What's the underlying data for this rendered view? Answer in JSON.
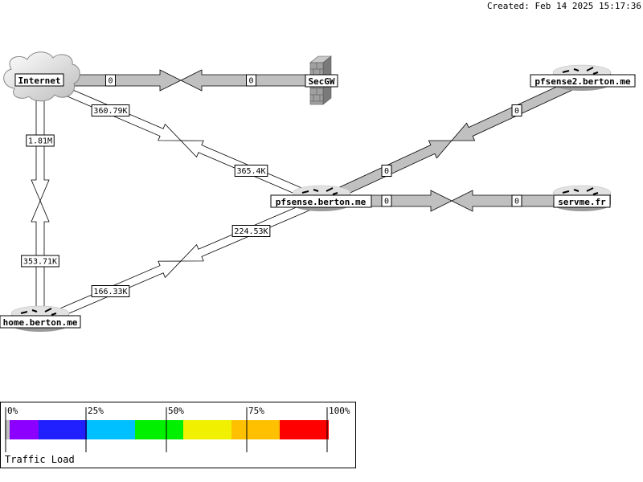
{
  "created": "Created: Feb 14 2025 15:17:36",
  "nodes": {
    "internet": {
      "label": "Internet",
      "icon": "cloud-icon"
    },
    "secgw": {
      "label": "SecGW",
      "icon": "firewall-icon"
    },
    "pfsense2": {
      "label": "pfsense2.berton.me",
      "icon": "router-icon"
    },
    "pfsense": {
      "label": "pfsense.berton.me",
      "icon": "router-icon"
    },
    "servme": {
      "label": "servme.fr",
      "icon": "router-icon"
    },
    "home": {
      "label": "home.berton.me",
      "icon": "router-icon"
    }
  },
  "links": {
    "internet_secgw": {
      "out": "0",
      "in": "0"
    },
    "internet_pfsense": {
      "out": "360.79K",
      "in": "365.4K"
    },
    "internet_home": {
      "out": "1.81M",
      "in": "353.71K"
    },
    "pfsense_pfsense2": {
      "out": "0",
      "in": "0"
    },
    "pfsense_servme": {
      "out": "0",
      "in": "0"
    },
    "pfsense_home": {
      "out": "224.53K",
      "in": "166.33K"
    }
  },
  "legend": {
    "title": "Traffic Load",
    "ticks": [
      "0%",
      "25%",
      "50%",
      "75%",
      "100%"
    ],
    "colors": [
      "#c0c0c0",
      "#8c00ff",
      "#2020ff",
      "#00c0ff",
      "#00f000",
      "#f0f000",
      "#ffc000",
      "#ff0000"
    ]
  }
}
